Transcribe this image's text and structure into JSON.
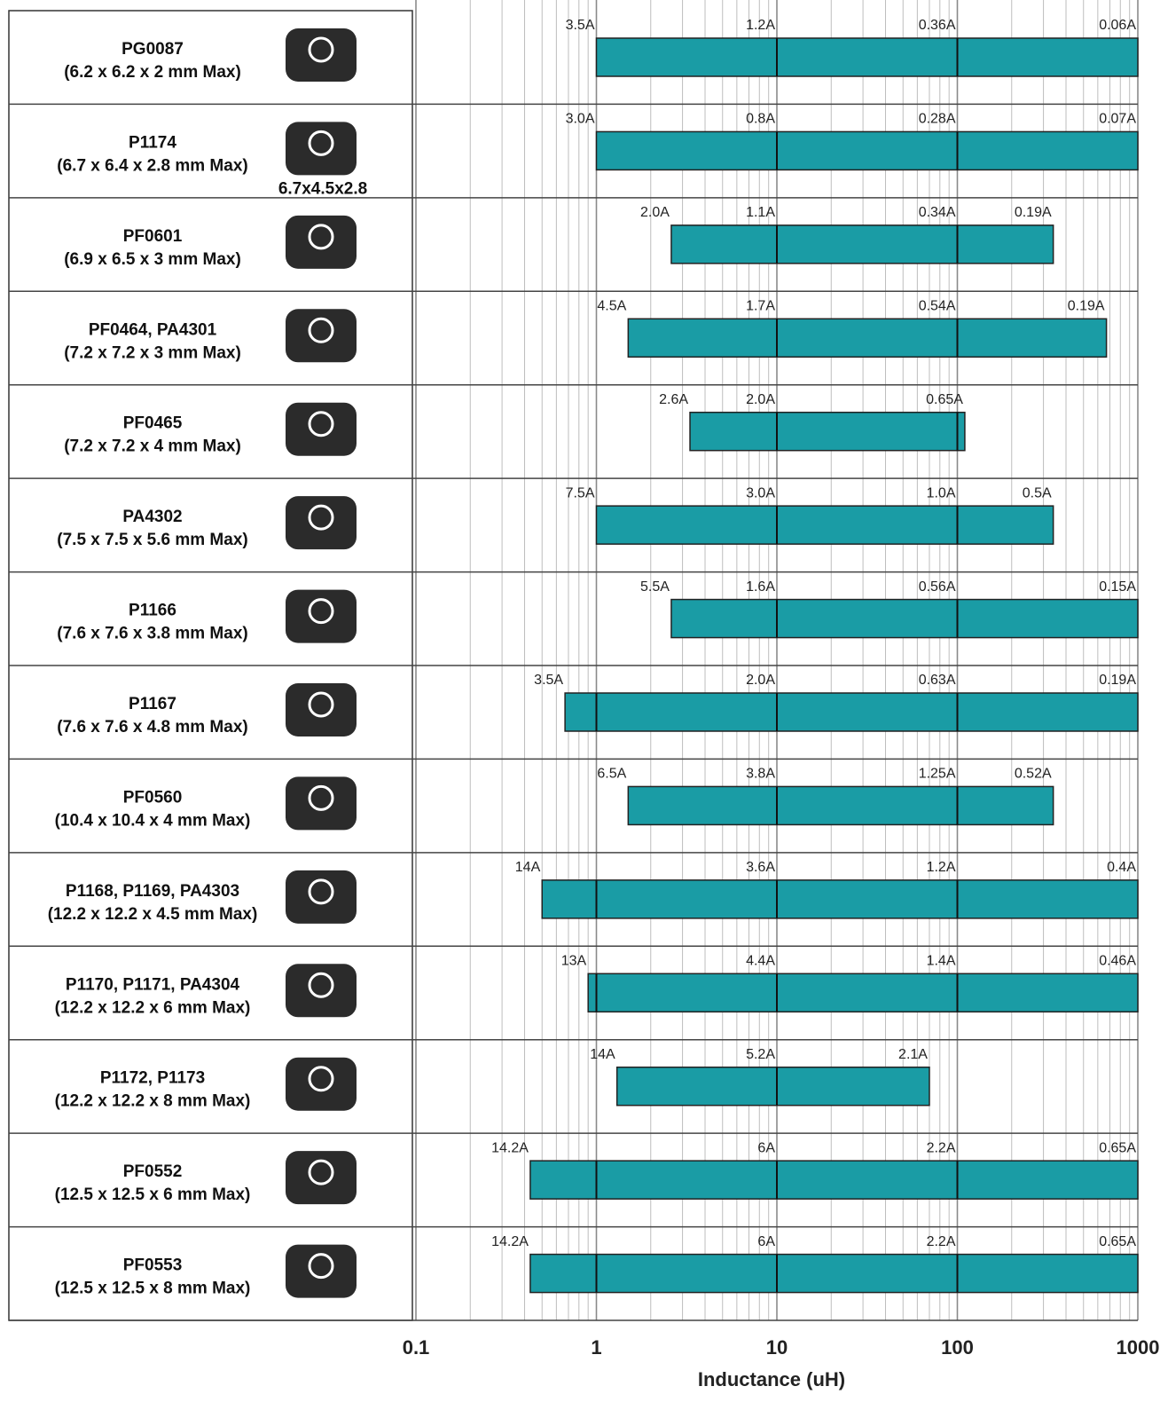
{
  "chart_data": {
    "type": "range",
    "xlabel": "Inductance (uH)",
    "xlim": [
      0.1,
      1000
    ],
    "xticks": [
      0.1,
      1,
      10,
      100,
      1000
    ],
    "log_x": true,
    "grid": true,
    "color": "#1a9ca5",
    "rows": [
      {
        "name": "PG0087",
        "size": "(6.2 x 6.2 x 2 mm Max)",
        "range": [
          1,
          1000
        ],
        "label_at": [
          1,
          10,
          100,
          1000
        ],
        "currents": [
          3.5,
          1.2,
          0.36,
          0.06
        ],
        "current_labels": [
          "3.5A",
          "1.2A",
          "0.36A",
          "0.06A"
        ]
      },
      {
        "name": "P1174",
        "size": "(6.7 x 6.4 x 2.8 mm Max)",
        "note": "6.7x4.5x2.8",
        "range": [
          1,
          1000
        ],
        "label_at": [
          1,
          10,
          100,
          1000
        ],
        "currents": [
          3.0,
          0.8,
          0.28,
          0.07
        ],
        "current_labels": [
          "3.0A",
          "0.8A",
          "0.28A",
          "0.07A"
        ]
      },
      {
        "name": "PF0601",
        "size": "(6.9 x 6.5 x 3 mm Max)",
        "range": [
          2.6,
          340
        ],
        "label_at": [
          2.6,
          10,
          100,
          340
        ],
        "currents": [
          2.0,
          1.1,
          0.34,
          0.19
        ],
        "current_labels": [
          "2.0A",
          "1.1A",
          "0.34A",
          "0.19A"
        ]
      },
      {
        "name": "PF0464, PA4301",
        "size": "(7.2 x 7.2 x 3 mm Max)",
        "range": [
          1.5,
          670
        ],
        "label_at": [
          1.5,
          10,
          100,
          670
        ],
        "currents": [
          4.5,
          1.7,
          0.54,
          0.19
        ],
        "current_labels": [
          "4.5A",
          "1.7A",
          "0.54A",
          "0.19A"
        ]
      },
      {
        "name": "PF0465",
        "size": "(7.2 x 7.2 x 4 mm Max)",
        "range": [
          3.3,
          110
        ],
        "label_at": [
          3.3,
          10,
          110
        ],
        "currents": [
          2.6,
          2.0,
          0.65
        ],
        "current_labels": [
          "2.6A",
          "2.0A",
          "0.65A"
        ]
      },
      {
        "name": "PA4302",
        "size": "(7.5 x 7.5 x 5.6 mm Max)",
        "range": [
          1,
          340
        ],
        "label_at": [
          1,
          10,
          100,
          340
        ],
        "currents": [
          7.5,
          3.0,
          1.0,
          0.5
        ],
        "current_labels": [
          "7.5A",
          "3.0A",
          "1.0A",
          "0.5A"
        ]
      },
      {
        "name": "P1166",
        "size": "(7.6 x 7.6 x 3.8 mm Max)",
        "range": [
          2.6,
          1000
        ],
        "label_at": [
          2.6,
          10,
          100,
          1000
        ],
        "currents": [
          5.5,
          1.6,
          0.56,
          0.15
        ],
        "current_labels": [
          "5.5A",
          "1.6A",
          "0.56A",
          "0.15A"
        ]
      },
      {
        "name": "P1167",
        "size": "(7.6 x 7.6 x 4.8 mm Max)",
        "range": [
          0.67,
          1000
        ],
        "label_at": [
          0.67,
          10,
          100,
          1000
        ],
        "currents": [
          3.5,
          2.0,
          0.63,
          0.19
        ],
        "current_labels": [
          "3.5A",
          "2.0A",
          "0.63A",
          "0.19A"
        ]
      },
      {
        "name": "PF0560",
        "size": "(10.4 x 10.4 x 4 mm Max)",
        "range": [
          1.5,
          340
        ],
        "label_at": [
          1.5,
          10,
          100,
          340
        ],
        "currents": [
          6.5,
          3.8,
          1.25,
          0.52
        ],
        "current_labels": [
          "6.5A",
          "3.8A",
          "1.25A",
          "0.52A"
        ]
      },
      {
        "name": "P1168, P1169, PA4303",
        "size": "(12.2 x 12.2 x 4.5 mm Max)",
        "range": [
          0.5,
          1000
        ],
        "label_at": [
          0.5,
          10,
          100,
          1000
        ],
        "currents": [
          14,
          3.6,
          1.2,
          0.4
        ],
        "current_labels": [
          "14A",
          "3.6A",
          "1.2A",
          "0.4A"
        ]
      },
      {
        "name": "P1170, P1171, PA4304",
        "size": "(12.2 x 12.2 x 6 mm Max)",
        "range": [
          0.9,
          1000
        ],
        "label_at": [
          0.9,
          10,
          100,
          1000
        ],
        "currents": [
          13,
          4.4,
          1.4,
          0.46
        ],
        "current_labels": [
          "13A",
          "4.4A",
          "1.4A",
          "0.46A"
        ]
      },
      {
        "name": "P1172, P1173",
        "size": "(12.2 x 12.2 x 8 mm Max)",
        "range": [
          1.3,
          70
        ],
        "label_at": [
          1.3,
          10,
          70
        ],
        "currents": [
          14,
          5.2,
          2.1
        ],
        "current_labels": [
          "14A",
          "5.2A",
          "2.1A"
        ]
      },
      {
        "name": "PF0552",
        "size": "(12.5 x 12.5 x 6 mm Max)",
        "range": [
          0.43,
          1000
        ],
        "label_at": [
          0.43,
          10,
          100,
          1000
        ],
        "currents": [
          14.2,
          6,
          2.2,
          0.65
        ],
        "current_labels": [
          "14.2A",
          "6A",
          "2.2A",
          "0.65A"
        ]
      },
      {
        "name": "PF0553",
        "size": "(12.5 x 12.5 x 8 mm Max)",
        "range": [
          0.43,
          1000
        ],
        "label_at": [
          0.43,
          10,
          100,
          1000
        ],
        "currents": [
          14.2,
          6,
          2.2,
          0.65
        ],
        "current_labels": [
          "14.2A",
          "6A",
          "2.2A",
          "0.65A"
        ]
      }
    ]
  }
}
